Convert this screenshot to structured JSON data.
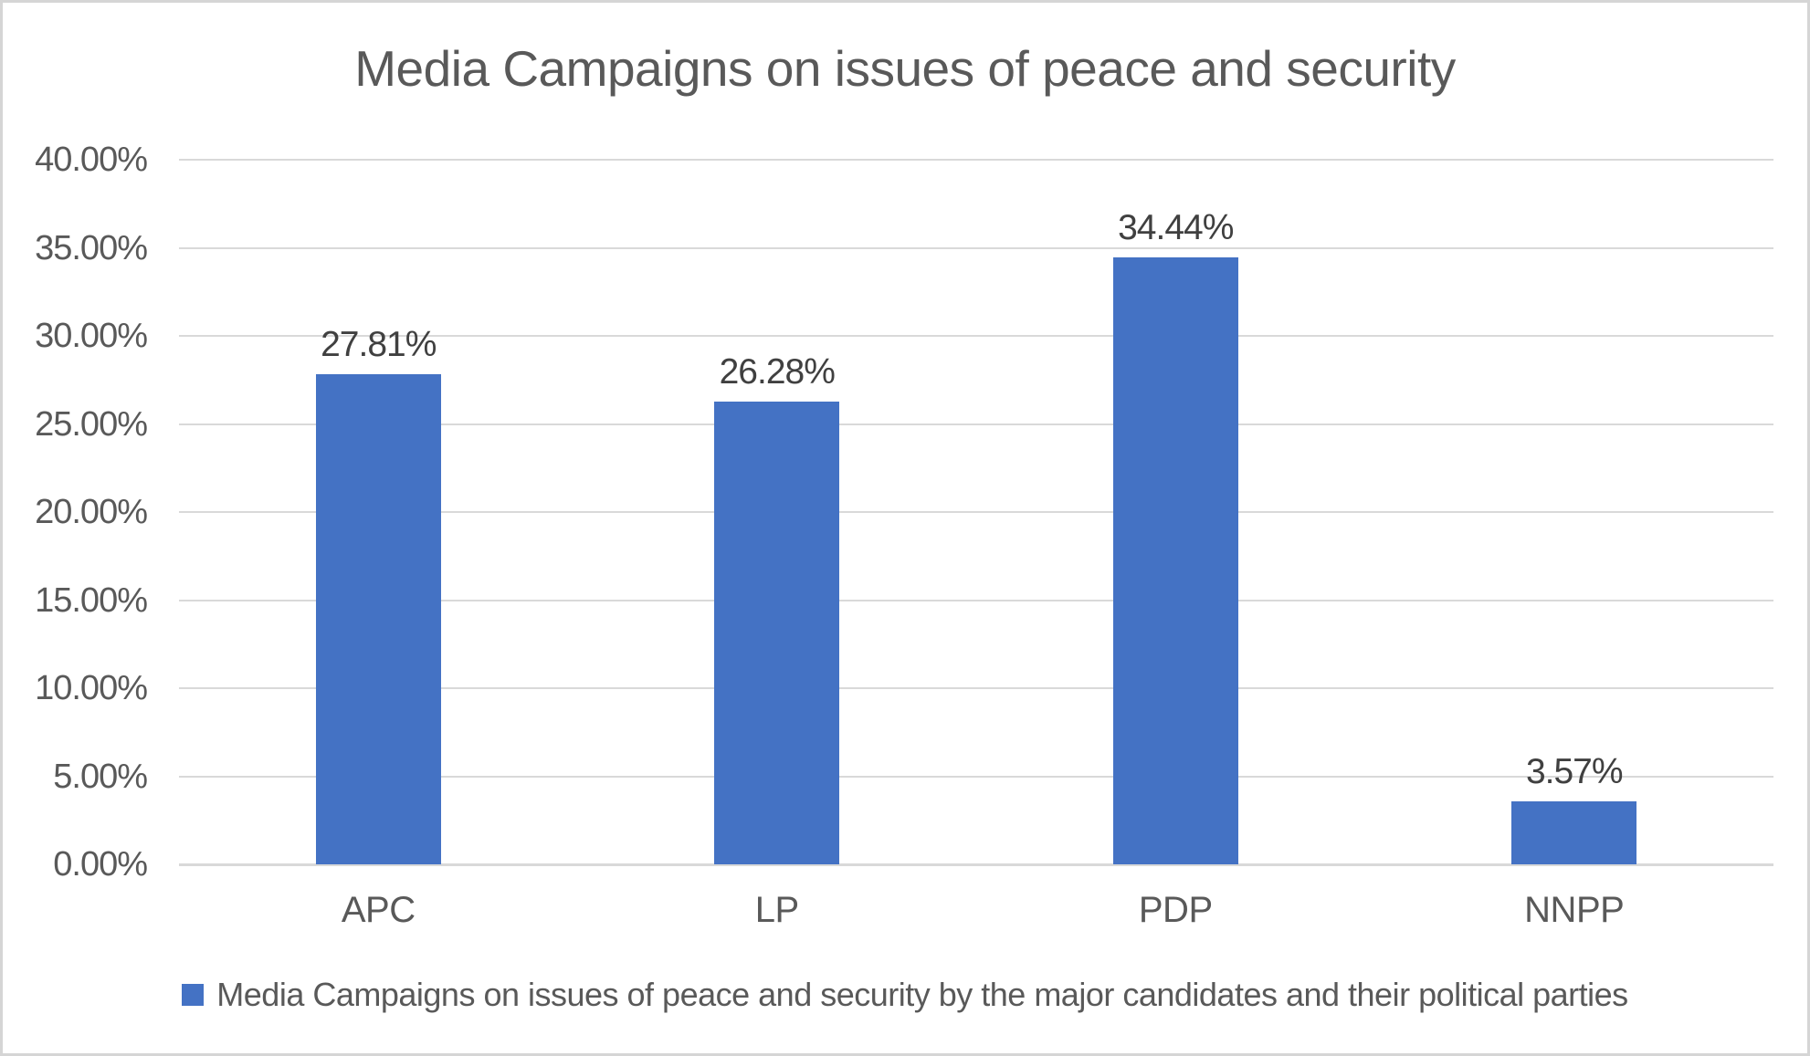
{
  "title": "Media Campaigns on issues of peace and security",
  "chart_data": {
    "type": "bar",
    "title": "Media Campaigns on issues of peace and security",
    "categories": [
      "APC",
      "LP",
      "PDP",
      "NNPP"
    ],
    "values": [
      27.81,
      26.28,
      34.44,
      3.57
    ],
    "data_labels": [
      "27.81%",
      "26.28%",
      "34.44%",
      "3.57%"
    ],
    "series": [
      {
        "name": "Media Campaigns on issues of peace and security by the major candidates and their political parties",
        "values": [
          27.81,
          26.28,
          34.44,
          3.57
        ]
      }
    ],
    "xlabel": "",
    "ylabel": "",
    "ylim": [
      0,
      40
    ],
    "y_tick_step": 5,
    "y_ticks": [
      "0.00%",
      "5.00%",
      "10.00%",
      "15.00%",
      "20.00%",
      "25.00%",
      "30.00%",
      "35.00%",
      "40.00%"
    ],
    "grid": true,
    "legend_position": "bottom",
    "legend": [
      "Media Campaigns on issues of peace and security by the major candidates and their political parties"
    ]
  },
  "colors": {
    "bar": "#4472C4",
    "title_text": "#595959",
    "axis_text": "#595959",
    "data_label_text": "#404040",
    "gridline": "#D9D9D9",
    "border": "#D5D5D5",
    "background": "#FFFFFF"
  }
}
